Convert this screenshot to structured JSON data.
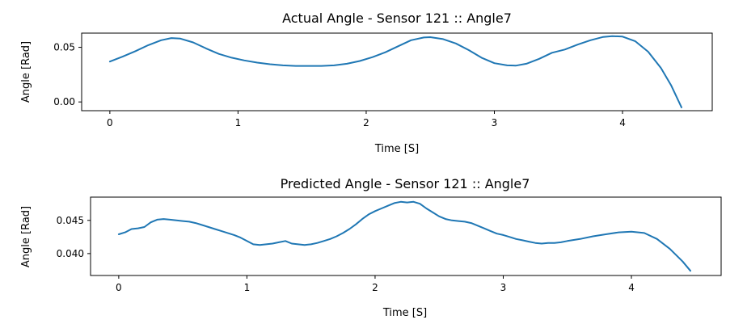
{
  "chart_data": [
    {
      "type": "line",
      "title": "Actual Angle - Sensor 121 :: Angle7",
      "xlabel": "Time [S]",
      "ylabel": "Angle [Rad]",
      "xlim": [
        -0.22,
        4.7
      ],
      "ylim": [
        -0.008,
        0.063
      ],
      "xticks": [
        0,
        1,
        2,
        3,
        4
      ],
      "yticks": [
        0.0,
        0.05
      ],
      "xtick_labels": [
        "0",
        "1",
        "2",
        "3",
        "4"
      ],
      "ytick_labels": [
        "0.00",
        "0.05"
      ],
      "grid": false,
      "color": "#1f77b4",
      "series": [
        {
          "x": [
            0.0,
            0.1,
            0.2,
            0.3,
            0.4,
            0.48,
            0.55,
            0.65,
            0.75,
            0.85,
            0.95,
            1.05,
            1.15,
            1.25,
            1.35,
            1.45,
            1.55,
            1.65,
            1.75,
            1.85,
            1.95,
            2.05,
            2.15,
            2.25,
            2.35,
            2.45,
            2.5,
            2.6,
            2.7,
            2.8,
            2.9,
            3.0,
            3.1,
            3.17,
            3.25,
            3.35,
            3.45,
            3.55,
            3.65,
            3.75,
            3.85,
            3.92,
            4.0,
            4.1,
            4.2,
            4.3,
            4.38,
            4.46
          ],
          "y": [
            0.037,
            0.0415,
            0.0465,
            0.052,
            0.0565,
            0.0585,
            0.058,
            0.0545,
            0.049,
            0.044,
            0.0405,
            0.038,
            0.036,
            0.0345,
            0.0335,
            0.033,
            0.033,
            0.033,
            0.0335,
            0.035,
            0.0375,
            0.041,
            0.0455,
            0.051,
            0.0565,
            0.059,
            0.0593,
            0.0575,
            0.0535,
            0.0475,
            0.0405,
            0.0355,
            0.0335,
            0.0333,
            0.035,
            0.0395,
            0.045,
            0.048,
            0.0525,
            0.0565,
            0.0595,
            0.0603,
            0.0598,
            0.0555,
            0.046,
            0.031,
            0.015,
            -0.005
          ]
        }
      ]
    },
    {
      "type": "line",
      "title": "Predicted Angle - Sensor 121 :: Angle7",
      "xlabel": "Time [S]",
      "ylabel": "Angle [Rad]",
      "xlim": [
        -0.22,
        4.7
      ],
      "ylim": [
        0.0367,
        0.0485
      ],
      "xticks": [
        0,
        1,
        2,
        3,
        4
      ],
      "yticks": [
        0.04,
        0.045
      ],
      "xtick_labels": [
        "0",
        "1",
        "2",
        "3",
        "4"
      ],
      "ytick_labels": [
        "0.040",
        "0.045"
      ],
      "grid": false,
      "color": "#1f77b4",
      "series": [
        {
          "x": [
            0.0,
            0.05,
            0.1,
            0.15,
            0.2,
            0.25,
            0.3,
            0.35,
            0.4,
            0.45,
            0.5,
            0.55,
            0.6,
            0.65,
            0.7,
            0.75,
            0.8,
            0.85,
            0.9,
            0.95,
            1.0,
            1.05,
            1.1,
            1.15,
            1.2,
            1.25,
            1.3,
            1.35,
            1.4,
            1.45,
            1.5,
            1.55,
            1.6,
            1.65,
            1.7,
            1.75,
            1.8,
            1.85,
            1.9,
            1.95,
            2.0,
            2.05,
            2.1,
            2.15,
            2.2,
            2.25,
            2.3,
            2.35,
            2.4,
            2.45,
            2.5,
            2.55,
            2.6,
            2.65,
            2.7,
            2.75,
            2.8,
            2.85,
            2.9,
            2.95,
            3.0,
            3.05,
            3.1,
            3.15,
            3.2,
            3.25,
            3.3,
            3.35,
            3.4,
            3.45,
            3.5,
            3.6,
            3.7,
            3.8,
            3.9,
            4.0,
            4.1,
            4.2,
            4.3,
            4.4,
            4.46
          ],
          "y": [
            0.0429,
            0.0432,
            0.0437,
            0.0438,
            0.044,
            0.0447,
            0.0451,
            0.0452,
            0.0451,
            0.045,
            0.0449,
            0.0448,
            0.0446,
            0.0443,
            0.044,
            0.0437,
            0.0434,
            0.0431,
            0.0428,
            0.0424,
            0.0419,
            0.0414,
            0.0413,
            0.0414,
            0.0415,
            0.0417,
            0.0419,
            0.0415,
            0.0414,
            0.0413,
            0.0414,
            0.0416,
            0.0419,
            0.0422,
            0.0426,
            0.0431,
            0.0437,
            0.0444,
            0.0452,
            0.0459,
            0.0464,
            0.0468,
            0.0472,
            0.0476,
            0.0478,
            0.0477,
            0.0478,
            0.0475,
            0.0468,
            0.0462,
            0.0456,
            0.0452,
            0.045,
            0.0449,
            0.0448,
            0.0446,
            0.0442,
            0.0438,
            0.0434,
            0.043,
            0.0428,
            0.0425,
            0.0422,
            0.042,
            0.0418,
            0.0416,
            0.0415,
            0.0416,
            0.0416,
            0.0417,
            0.0419,
            0.0422,
            0.0426,
            0.0429,
            0.0432,
            0.0433,
            0.0431,
            0.0422,
            0.0407,
            0.0388,
            0.0374
          ]
        }
      ]
    }
  ]
}
